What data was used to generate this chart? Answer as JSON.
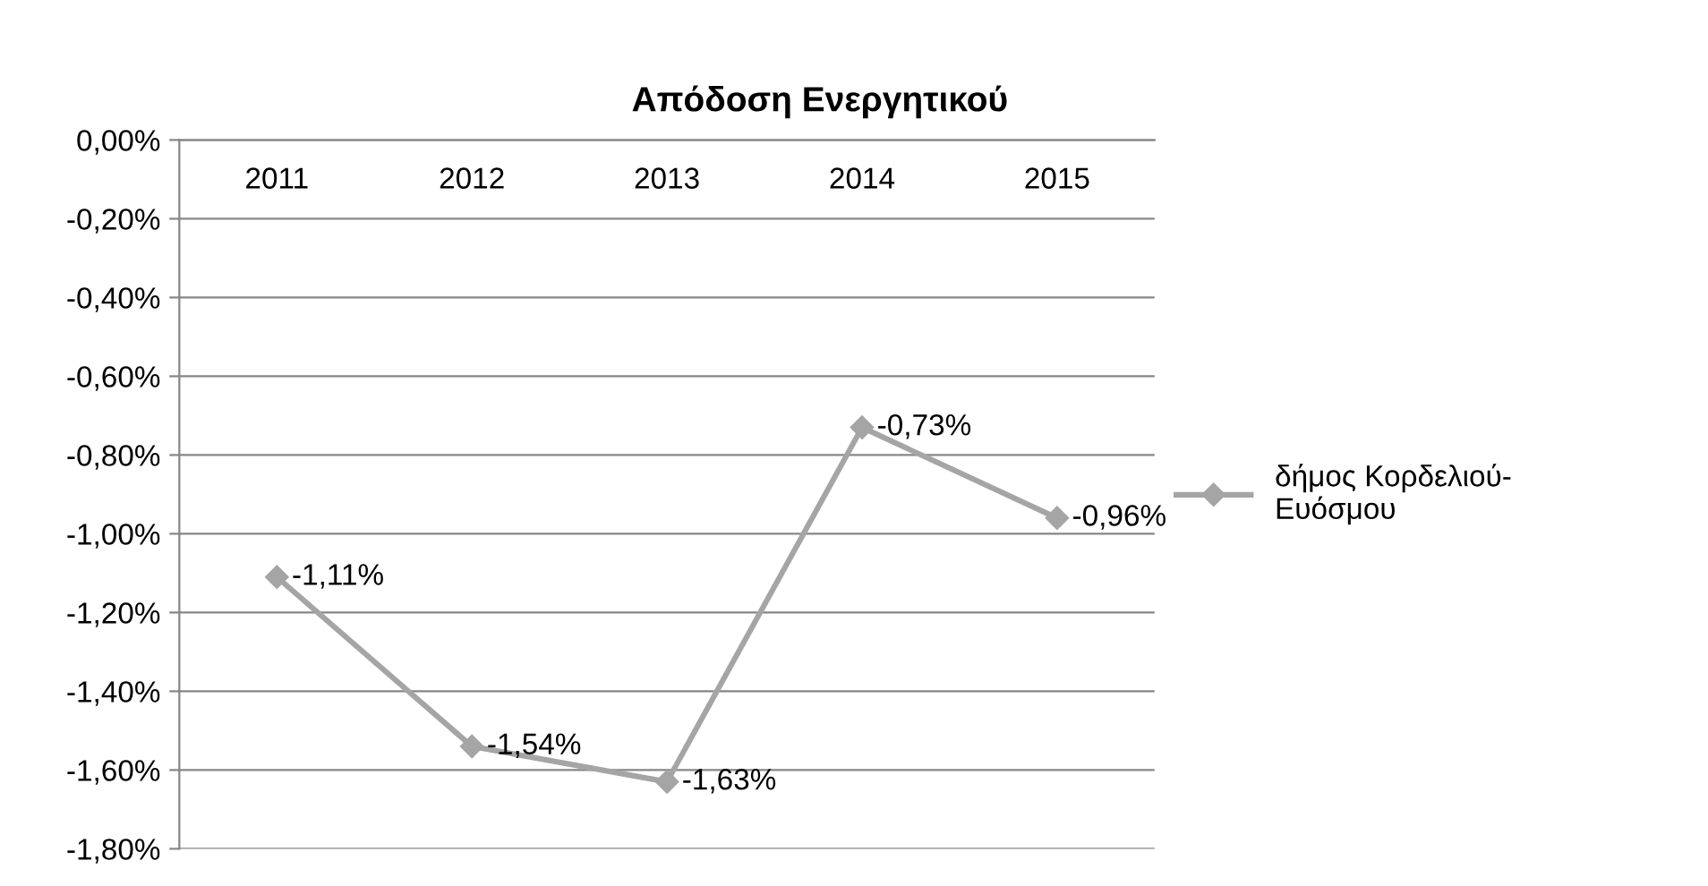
{
  "chart_data": {
    "type": "line",
    "title": "Απόδοση Ενεργητικού",
    "categories": [
      "2011",
      "2012",
      "2013",
      "2014",
      "2015"
    ],
    "series": [
      {
        "name": "δήμος Κορδελιού-Ευόσμου",
        "color": "#a5a5a5",
        "values": [
          -1.11,
          -1.54,
          -1.63,
          -0.73,
          -0.96
        ],
        "value_labels": [
          "-1,11%",
          "-1,54%",
          "-1,63%",
          "-0,73%",
          "-0,96%"
        ]
      }
    ],
    "ylim": [
      -1.8,
      0
    ],
    "yticks": [
      {
        "value": 0,
        "label": "0,00%"
      },
      {
        "value": -0.2,
        "label": "-0,20%"
      },
      {
        "value": -0.4,
        "label": "-0,40%"
      },
      {
        "value": -0.6,
        "label": "-0,60%"
      },
      {
        "value": -0.8,
        "label": "-0,80%"
      },
      {
        "value": -1.0,
        "label": "-1,00%"
      },
      {
        "value": -1.2,
        "label": "-1,20%"
      },
      {
        "value": -1.4,
        "label": "-1,40%"
      },
      {
        "value": -1.6,
        "label": "-1,60%"
      },
      {
        "value": -1.8,
        "label": "-1,80%"
      }
    ],
    "grid": "y",
    "legend": "right",
    "marker": "diamond",
    "line_style": "solid"
  }
}
